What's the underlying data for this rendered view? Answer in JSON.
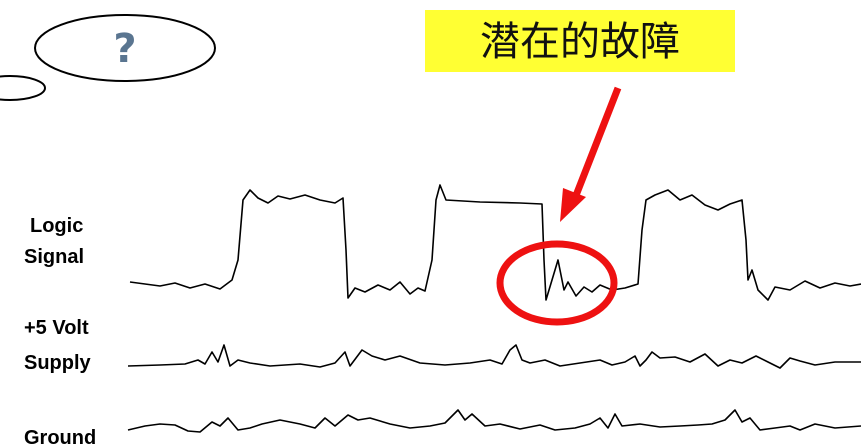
{
  "callout": {
    "question": "?",
    "label": "潜在的故障"
  },
  "traces": [
    {
      "label_lines": [
        "Logic",
        "Signal"
      ]
    },
    {
      "label_lines": [
        "+5 Volt",
        "Supply"
      ]
    },
    {
      "label_lines": [
        "Ground"
      ]
    }
  ]
}
